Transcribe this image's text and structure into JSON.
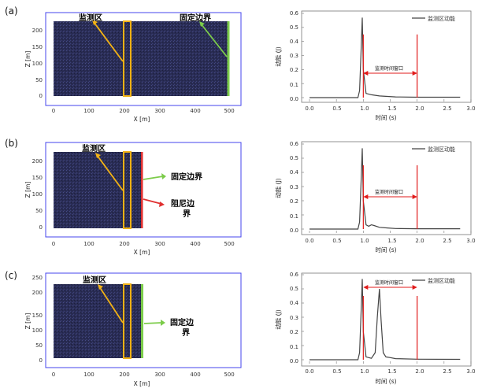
{
  "rows": [
    {
      "panel_label": "(a)",
      "model": {
        "ylabel": "Z [m]",
        "xlabel": "X [m]",
        "xticks": [
          "0",
          "100",
          "200",
          "300",
          "400",
          "500"
        ],
        "yticks": [
          "0",
          "50",
          "100",
          "150",
          "200"
        ],
        "monitor_label": "监测区",
        "labels": [
          "固定边界"
        ]
      },
      "energy": {
        "legend": "监测区动能",
        "ylabel": "动能 (J)",
        "xlabel": "时间 (s)",
        "xticks": [
          "0.0",
          "0.5",
          "1.0",
          "1.5",
          "2.0",
          "2.5",
          "3.0"
        ],
        "yticks": [
          "0.0",
          "0.1",
          "0.2",
          "0.3",
          "0.4",
          "0.5",
          "0.6"
        ],
        "window_label": "监测时间窗口"
      }
    },
    {
      "panel_label": "(b)",
      "model": {
        "ylabel": "Z [m]",
        "xlabel": "X [m]",
        "xticks": [
          "0",
          "100",
          "200",
          "300",
          "400",
          "500"
        ],
        "yticks": [
          "0",
          "50",
          "100",
          "150",
          "200"
        ],
        "monitor_label": "监测区",
        "labels": [
          "固定边界",
          "阻尼边",
          "界"
        ]
      },
      "energy": {
        "legend": "监测区动能",
        "ylabel": "动能 (J)",
        "xlabel": "时间 (s)",
        "xticks": [
          "0.0",
          "0.5",
          "1.0",
          "1.5",
          "2.0",
          "2.5",
          "3.0"
        ],
        "yticks": [
          "0.0",
          "0.1",
          "0.2",
          "0.3",
          "0.4",
          "0.5",
          "0.6"
        ],
        "window_label": "监测时间窗口"
      }
    },
    {
      "panel_label": "(c)",
      "model": {
        "ylabel": "Z [m]",
        "xlabel": "X [m]",
        "xticks": [
          "0",
          "100",
          "200",
          "300",
          "400",
          "500"
        ],
        "yticks": [
          "0",
          "50",
          "100",
          "150",
          "200",
          "250"
        ],
        "monitor_label": "监测区",
        "labels": [
          "固定边",
          "界"
        ]
      },
      "energy": {
        "legend": "监测区动能",
        "ylabel": "动能 (J)",
        "xlabel": "时间 (s)",
        "xticks": [
          "0.0",
          "0.5",
          "1.0",
          "1.5",
          "2.0",
          "2.5",
          "3.0"
        ],
        "yticks": [
          "0.0",
          "0.1",
          "0.2",
          "0.3",
          "0.4",
          "0.5",
          "0.6"
        ],
        "window_label": "监测时间窗口"
      }
    }
  ],
  "chart_data": [
    {
      "type": "line",
      "series": [
        {
          "name": "监测区动能",
          "x": [
            0,
            0.9,
            0.93,
            0.96,
            0.98,
            1.0,
            1.05,
            1.15,
            1.3,
            1.6,
            2.0,
            2.8
          ],
          "y": [
            0,
            0,
            0.05,
            0.35,
            0.57,
            0.2,
            0.03,
            0.02,
            0.012,
            0.005,
            0.003,
            0.003
          ]
        }
      ],
      "window": [
        1.0,
        2.0
      ],
      "xlim": [
        0,
        3.0
      ],
      "ylim": [
        0,
        0.6
      ]
    },
    {
      "type": "line",
      "series": [
        {
          "name": "监测区动能",
          "x": [
            0,
            0.9,
            0.93,
            0.96,
            0.98,
            1.0,
            1.05,
            1.1,
            1.15,
            1.2,
            1.3,
            1.45,
            1.6,
            2.0,
            2.8
          ],
          "y": [
            0,
            0,
            0.05,
            0.35,
            0.57,
            0.2,
            0.03,
            0.02,
            0.03,
            0.025,
            0.012,
            0.008,
            0.004,
            0.002,
            0.002
          ]
        }
      ],
      "window": [
        1.0,
        2.0
      ],
      "xlim": [
        0,
        3.0
      ],
      "ylim": [
        0,
        0.6
      ]
    },
    {
      "type": "line",
      "series": [
        {
          "name": "监测区动能",
          "x": [
            0,
            0.9,
            0.93,
            0.96,
            0.98,
            1.0,
            1.05,
            1.15,
            1.22,
            1.26,
            1.3,
            1.33,
            1.37,
            1.42,
            1.5,
            1.6,
            2.0,
            2.8
          ],
          "y": [
            0,
            0,
            0.05,
            0.35,
            0.57,
            0.2,
            0.02,
            0.01,
            0.05,
            0.3,
            0.5,
            0.28,
            0.05,
            0.02,
            0.015,
            0.008,
            0.004,
            0.003
          ]
        }
      ],
      "window": [
        1.0,
        2.0
      ],
      "xlim": [
        0,
        3.0
      ],
      "ylim": [
        0,
        0.6
      ]
    }
  ],
  "colors": {
    "frame": "#4444ee",
    "model_fill": "#2a2d55",
    "monitor_box": "#f2b215",
    "fixed_boundary": "#7ccc4a",
    "damping_boundary": "#e03030",
    "curve": "#444444",
    "window": "#e11b1b"
  }
}
